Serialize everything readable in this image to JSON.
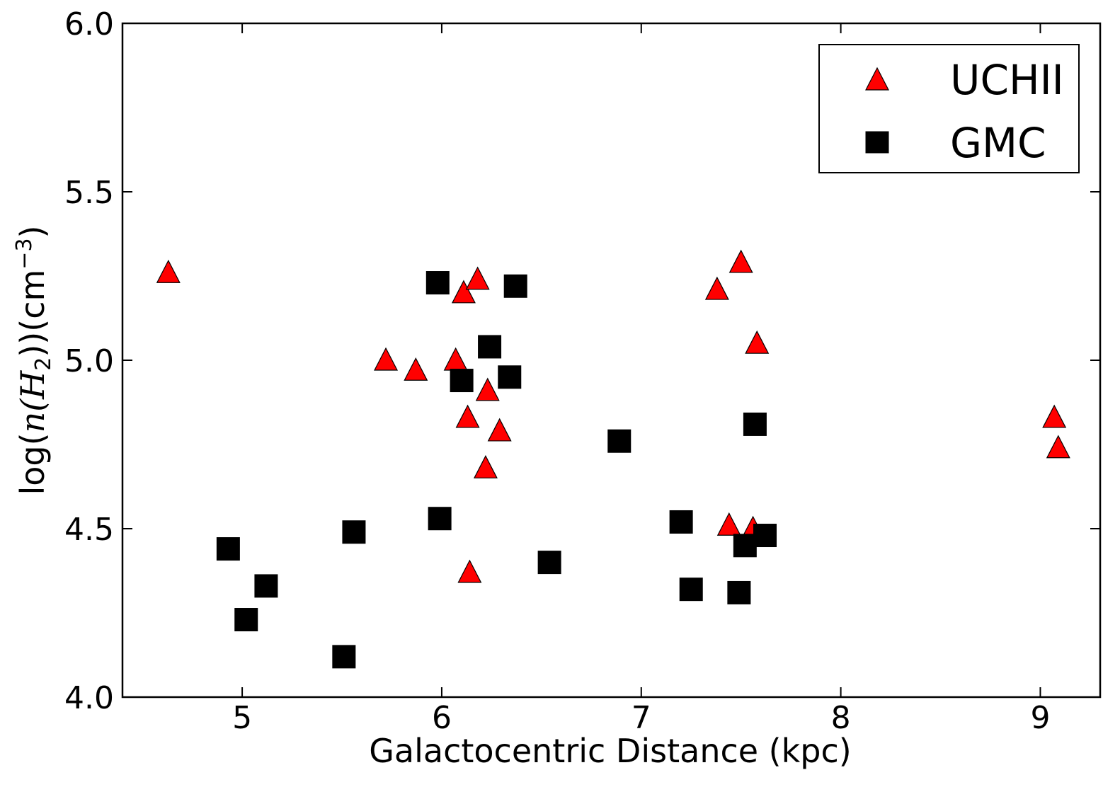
{
  "chart_data": {
    "type": "scatter",
    "xlabel": "Galactocentric Distance (kpc)",
    "ylabel_prefix": "log(",
    "ylabel_math": "n(H",
    "ylabel_sub": "2",
    "ylabel_mid": "))(cm",
    "ylabel_sup": "−3",
    "ylabel_suffix": ")",
    "xlim": [
      4.4,
      9.3
    ],
    "ylim": [
      4.0,
      6.0
    ],
    "xticks": [
      5,
      6,
      7,
      8,
      9
    ],
    "yticks": [
      4.0,
      4.5,
      5.0,
      5.5,
      6.0
    ],
    "xtick_labels": [
      "5",
      "6",
      "7",
      "8",
      "9"
    ],
    "ytick_labels": [
      "4.0",
      "4.5",
      "5.0",
      "5.5",
      "6.0"
    ],
    "legend_position": "top-right",
    "series": [
      {
        "name": "UCHII",
        "marker": "triangle",
        "color": "#ff0000",
        "points": [
          [
            4.63,
            5.26
          ],
          [
            5.72,
            5.0
          ],
          [
            5.87,
            4.97
          ],
          [
            6.07,
            5.0
          ],
          [
            6.11,
            5.2
          ],
          [
            6.18,
            5.24
          ],
          [
            6.13,
            4.83
          ],
          [
            6.23,
            4.91
          ],
          [
            6.29,
            4.79
          ],
          [
            6.22,
            4.68
          ],
          [
            6.14,
            4.37
          ],
          [
            7.38,
            5.21
          ],
          [
            7.5,
            5.29
          ],
          [
            7.58,
            5.05
          ],
          [
            7.44,
            4.51
          ],
          [
            7.56,
            4.5
          ],
          [
            9.07,
            4.83
          ],
          [
            9.09,
            4.74
          ]
        ]
      },
      {
        "name": "GMC",
        "marker": "square",
        "color": "#000000",
        "points": [
          [
            4.93,
            4.44
          ],
          [
            5.02,
            4.23
          ],
          [
            5.12,
            4.33
          ],
          [
            5.51,
            4.12
          ],
          [
            5.56,
            4.49
          ],
          [
            5.98,
            5.23
          ],
          [
            6.1,
            4.94
          ],
          [
            6.24,
            5.04
          ],
          [
            6.34,
            4.95
          ],
          [
            6.37,
            5.22
          ],
          [
            5.99,
            4.53
          ],
          [
            6.54,
            4.4
          ],
          [
            6.89,
            4.76
          ],
          [
            7.2,
            4.52
          ],
          [
            7.25,
            4.32
          ],
          [
            7.49,
            4.31
          ],
          [
            7.52,
            4.45
          ],
          [
            7.57,
            4.81
          ],
          [
            7.62,
            4.48
          ]
        ]
      }
    ]
  }
}
